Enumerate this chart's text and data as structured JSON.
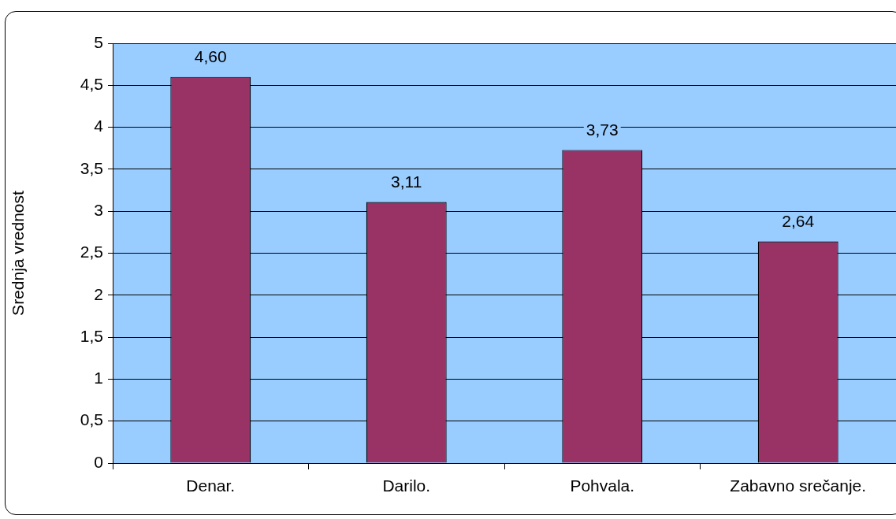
{
  "chart_data": {
    "type": "bar",
    "ylabel": "Srednja vrednost",
    "categories": [
      "Denar.",
      "Darilo.",
      "Pohvala.",
      "Zabavno srečanje."
    ],
    "values": [
      4.6,
      3.11,
      3.73,
      2.64
    ],
    "value_labels": [
      "4,60",
      "3,11",
      "3,73",
      "2,64"
    ],
    "color": "#993366",
    "ylim": [
      0,
      5
    ],
    "yticks": [
      0,
      {
        "value": 0.5,
        "label": "0,5"
      },
      1,
      {
        "value": 1.5,
        "label": "1,5"
      },
      2,
      {
        "value": 2.5,
        "label": "2,5"
      },
      3,
      {
        "value": 3.5,
        "label": "3,5"
      },
      4,
      {
        "value": 4.5,
        "label": "4,5"
      },
      5
    ],
    "grid": "y",
    "legend": false
  }
}
